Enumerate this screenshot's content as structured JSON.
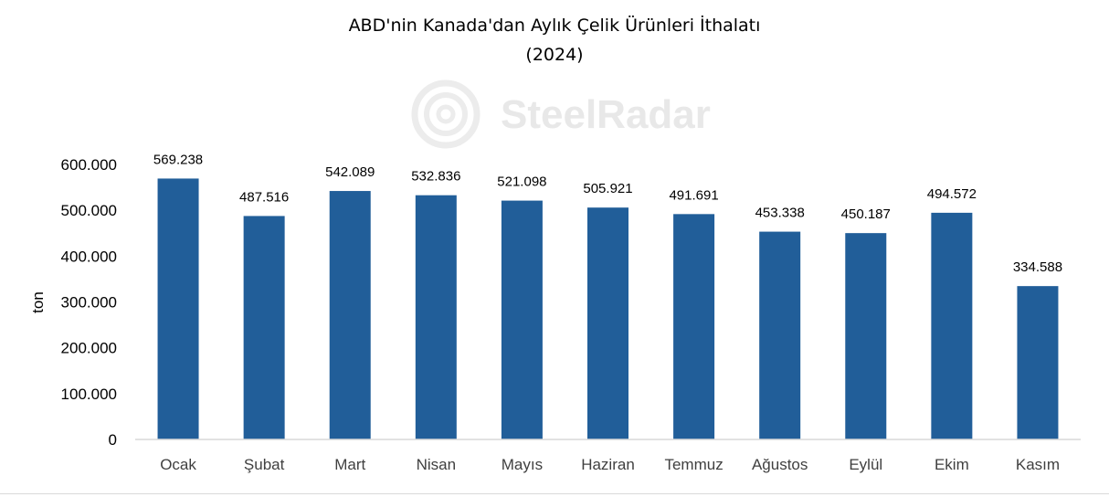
{
  "chart_data": {
    "type": "bar",
    "title": "ABD'nin Kanada'dan Aylık Çelik Ürünleri İthalatı",
    "subtitle": "(2024)",
    "xlabel": "",
    "ylabel": "ton",
    "watermark": "SteelRadar",
    "categories": [
      "Ocak",
      "Şubat",
      "Mart",
      "Nisan",
      "Mayıs",
      "Haziran",
      "Temmuz",
      "Ağustos",
      "Eylül",
      "Ekim",
      "Kasım"
    ],
    "values": [
      569238,
      487516,
      542089,
      532836,
      521098,
      505921,
      491691,
      453338,
      450187,
      494572,
      334588
    ],
    "value_labels": [
      "569.238",
      "487.516",
      "542.089",
      "532.836",
      "521.098",
      "505.921",
      "491.691",
      "453.338",
      "450.187",
      "494.572",
      "334.588"
    ],
    "y_ticks": [
      0,
      100000,
      200000,
      300000,
      400000,
      500000,
      600000
    ],
    "y_tick_labels": [
      "0",
      "100.000",
      "200.000",
      "300.000",
      "400.000",
      "500.000",
      "600.000"
    ],
    "ylim": [
      0,
      600000
    ],
    "grid": false,
    "legend": "none",
    "colors": {
      "bar": "#215e99",
      "axis": "#d9d9d9",
      "tick_text": "#000000",
      "category_text": "#404040",
      "watermark": "#e6e6e6"
    }
  }
}
